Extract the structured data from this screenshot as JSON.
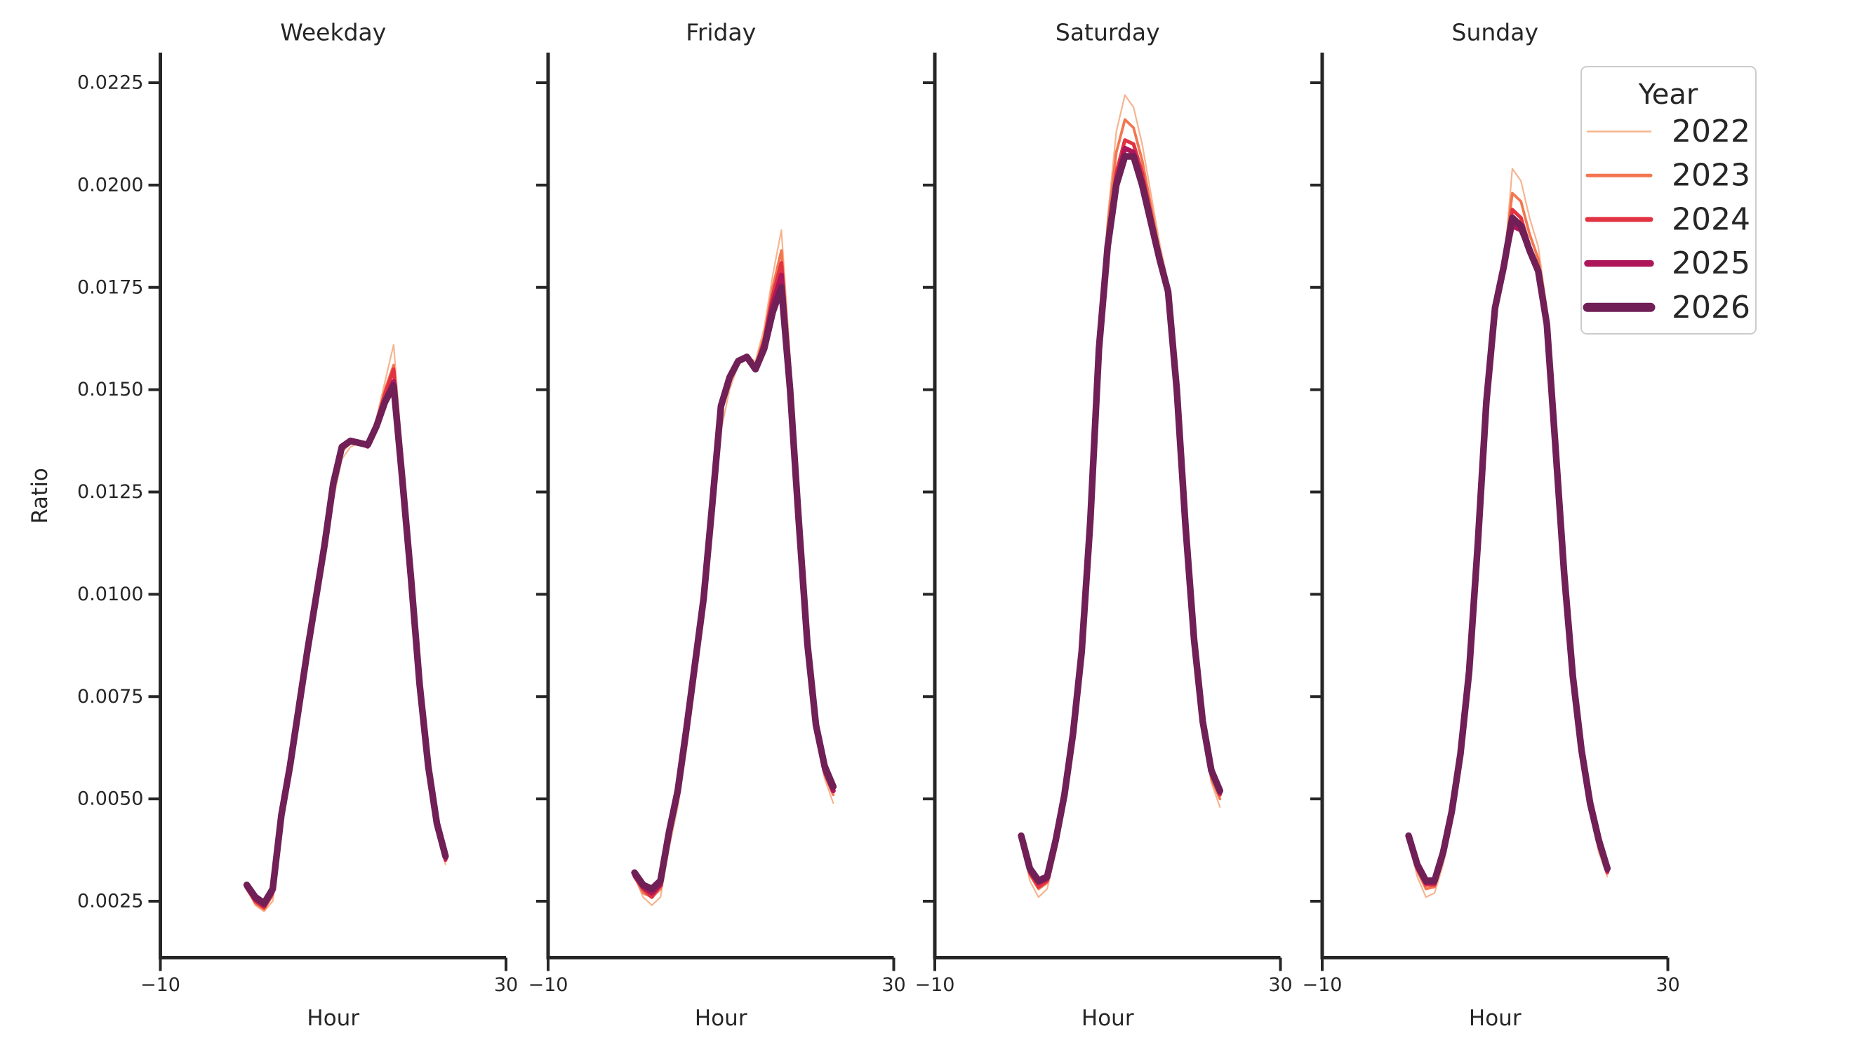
{
  "figure": {
    "background": "#ffffff",
    "text_color": "#262626",
    "spine_color": "#262626",
    "legend_border_color": "#cccccc"
  },
  "chart_data": {
    "type": "line",
    "small_multiples": true,
    "xlabel": "Hour",
    "ylabel": "Ratio",
    "xlim": [
      -10,
      30
    ],
    "ylim": [
      0.0011,
      0.0232
    ],
    "grid": false,
    "xticks": [
      -10,
      30
    ],
    "xtick_labels": [
      "−10",
      "30"
    ],
    "ytick_values": [
      0.0225,
      0.02,
      0.0175,
      0.015,
      0.0125,
      0.01,
      0.0075,
      0.005,
      0.0025
    ],
    "ytick_labels": [
      "0.0225",
      "0.0200",
      "0.0175",
      "0.0150",
      "0.0125",
      "0.0100",
      "0.0075",
      "0.0050",
      "0.0025"
    ],
    "x": [
      0,
      1,
      2,
      3,
      4,
      5,
      6,
      7,
      8,
      9,
      10,
      11,
      12,
      13,
      14,
      15,
      16,
      17,
      18,
      19,
      20,
      21,
      22,
      23
    ],
    "legend": {
      "title": "Year",
      "position": "upper-right",
      "entries": [
        "2022",
        "2023",
        "2024",
        "2025",
        "2026"
      ]
    },
    "series_style": [
      {
        "year": "2022",
        "color": "#f6b48f",
        "line_width": 2.2,
        "legend_swatch_width": 2.5
      },
      {
        "year": "2023",
        "color": "#f37651",
        "line_width": 3.8,
        "legend_swatch_width": 5
      },
      {
        "year": "2024",
        "color": "#e13342",
        "line_width": 5.2,
        "legend_swatch_width": 7
      },
      {
        "year": "2025",
        "color": "#ad1759",
        "line_width": 7.0,
        "legend_swatch_width": 9.5
      },
      {
        "year": "2026",
        "color": "#701f57",
        "line_width": 9.5,
        "legend_swatch_width": 13
      }
    ],
    "panels": [
      {
        "title": "Weekday",
        "series": [
          {
            "name": "2022",
            "values": [
              0.0028,
              0.0024,
              0.00225,
              0.0025,
              0.0044,
              0.0056,
              0.007,
              0.0084,
              0.0096,
              0.0109,
              0.0123,
              0.0133,
              0.0136,
              0.0137,
              0.0136,
              0.0143,
              0.0152,
              0.0161,
              0.0134,
              0.0106,
              0.0079,
              0.0057,
              0.0042,
              0.0034
            ]
          },
          {
            "name": "2023",
            "values": [
              0.0028,
              0.00245,
              0.0023,
              0.00265,
              0.0045,
              0.0057,
              0.0071,
              0.0085,
              0.0098,
              0.0111,
              0.0126,
              0.0135,
              0.0137,
              0.0137,
              0.0136,
              0.0142,
              0.015,
              0.0156,
              0.0131,
              0.0105,
              0.0078,
              0.0057,
              0.0043,
              0.0035
            ]
          },
          {
            "name": "2024",
            "values": [
              0.00285,
              0.0025,
              0.00235,
              0.0027,
              0.0045,
              0.0057,
              0.0071,
              0.0085,
              0.0099,
              0.0112,
              0.0127,
              0.0136,
              0.0137,
              0.0137,
              0.0136,
              0.0142,
              0.0149,
              0.0155,
              0.013,
              0.0104,
              0.0078,
              0.0058,
              0.0043,
              0.0035
            ]
          },
          {
            "name": "2025",
            "values": [
              0.00285,
              0.00255,
              0.0024,
              0.00275,
              0.0046,
              0.0058,
              0.0072,
              0.0086,
              0.0099,
              0.0112,
              0.0127,
              0.0136,
              0.01375,
              0.0137,
              0.01365,
              0.0141,
              0.01475,
              0.0152,
              0.01285,
              0.0104,
              0.0078,
              0.0058,
              0.0044,
              0.00355
            ]
          },
          {
            "name": "2026",
            "values": [
              0.0029,
              0.0026,
              0.00245,
              0.0028,
              0.0046,
              0.0058,
              0.0072,
              0.0086,
              0.0099,
              0.0112,
              0.0127,
              0.0136,
              0.01375,
              0.0137,
              0.01365,
              0.0141,
              0.0147,
              0.0151,
              0.0128,
              0.0104,
              0.0078,
              0.0058,
              0.0044,
              0.0036
            ]
          }
        ]
      },
      {
        "title": "Friday",
        "series": [
          {
            "name": "2022",
            "values": [
              0.0031,
              0.0026,
              0.0024,
              0.0026,
              0.0038,
              0.0048,
              0.0062,
              0.0078,
              0.0094,
              0.0115,
              0.014,
              0.015,
              0.0156,
              0.0158,
              0.0157,
              0.0165,
              0.0178,
              0.0189,
              0.0158,
              0.0123,
              0.009,
              0.0067,
              0.0055,
              0.0049
            ]
          },
          {
            "name": "2023",
            "values": [
              0.0031,
              0.0027,
              0.0026,
              0.0028,
              0.004,
              0.005,
              0.0065,
              0.0081,
              0.0097,
              0.0119,
              0.0144,
              0.0152,
              0.0157,
              0.0158,
              0.0156,
              0.0163,
              0.0175,
              0.0184,
              0.0155,
              0.0121,
              0.0089,
              0.0067,
              0.0056,
              0.0051
            ]
          },
          {
            "name": "2024",
            "values": [
              0.0031,
              0.0028,
              0.0026,
              0.0029,
              0.0041,
              0.0051,
              0.0066,
              0.0082,
              0.0098,
              0.0121,
              0.0145,
              0.0153,
              0.0157,
              0.0158,
              0.0155,
              0.0162,
              0.0173,
              0.0181,
              0.0153,
              0.012,
              0.0088,
              0.0067,
              0.0057,
              0.0052
            ]
          },
          {
            "name": "2025",
            "values": [
              0.00315,
              0.00285,
              0.0027,
              0.0029,
              0.0042,
              0.0052,
              0.0067,
              0.0083,
              0.0099,
              0.0122,
              0.0146,
              0.0153,
              0.0157,
              0.0158,
              0.0155,
              0.0161,
              0.0171,
              0.0178,
              0.0152,
              0.0119,
              0.0088,
              0.0068,
              0.0057,
              0.0052
            ]
          },
          {
            "name": "2026",
            "values": [
              0.0032,
              0.0029,
              0.0028,
              0.003,
              0.0042,
              0.0052,
              0.0067,
              0.0083,
              0.0099,
              0.0122,
              0.0146,
              0.0153,
              0.0157,
              0.0158,
              0.0155,
              0.016,
              0.0169,
              0.0175,
              0.015,
              0.0118,
              0.0088,
              0.0068,
              0.0058,
              0.0053
            ]
          }
        ]
      },
      {
        "title": "Saturday",
        "series": [
          {
            "name": "2022",
            "values": [
              0.004,
              0.003,
              0.0026,
              0.0028,
              0.0037,
              0.0048,
              0.0062,
              0.0081,
              0.0112,
              0.0153,
              0.0192,
              0.0213,
              0.0222,
              0.0219,
              0.021,
              0.0198,
              0.0186,
              0.0176,
              0.0152,
              0.0118,
              0.0088,
              0.0067,
              0.0054,
              0.0048
            ]
          },
          {
            "name": "2023",
            "values": [
              0.004,
              0.00315,
              0.0028,
              0.00295,
              0.0039,
              0.005,
              0.0064,
              0.0084,
              0.0116,
              0.0158,
              0.019,
              0.0208,
              0.0216,
              0.0214,
              0.0206,
              0.0195,
              0.0184,
              0.0175,
              0.0151,
              0.0117,
              0.0088,
              0.0068,
              0.0055,
              0.005
            ]
          },
          {
            "name": "2024",
            "values": [
              0.004,
              0.0032,
              0.00285,
              0.003,
              0.0039,
              0.005,
              0.0065,
              0.0085,
              0.0117,
              0.0159,
              0.0187,
              0.0203,
              0.0211,
              0.021,
              0.0203,
              0.0193,
              0.0183,
              0.0174,
              0.015,
              0.0117,
              0.0089,
              0.0068,
              0.0056,
              0.0051
            ]
          },
          {
            "name": "2025",
            "values": [
              0.00405,
              0.00325,
              0.00295,
              0.00305,
              0.004,
              0.0051,
              0.0066,
              0.0086,
              0.0118,
              0.016,
              0.0186,
              0.0201,
              0.0209,
              0.0208,
              0.0201,
              0.0192,
              0.0182,
              0.0174,
              0.015,
              0.0117,
              0.0089,
              0.0069,
              0.0057,
              0.00515
            ]
          },
          {
            "name": "2026",
            "values": [
              0.0041,
              0.0033,
              0.003,
              0.0031,
              0.004,
              0.0051,
              0.0066,
              0.0086,
              0.0118,
              0.016,
              0.0185,
              0.02,
              0.0207,
              0.0207,
              0.02,
              0.0191,
              0.0182,
              0.0174,
              0.015,
              0.0117,
              0.0089,
              0.0069,
              0.0057,
              0.0052
            ]
          }
        ]
      },
      {
        "title": "Sunday",
        "series": [
          {
            "name": "2022",
            "values": [
              0.004,
              0.0031,
              0.0026,
              0.0027,
              0.0034,
              0.0044,
              0.0057,
              0.0076,
              0.0106,
              0.0141,
              0.0168,
              0.0179,
              0.0204,
              0.0201,
              0.0192,
              0.0185,
              0.017,
              0.0139,
              0.0107,
              0.0081,
              0.0061,
              0.0047,
              0.0037,
              0.0031
            ]
          },
          {
            "name": "2023",
            "values": [
              0.004,
              0.00325,
              0.0028,
              0.00285,
              0.0036,
              0.0046,
              0.0059,
              0.0079,
              0.011,
              0.0145,
              0.017,
              0.0181,
              0.0198,
              0.0196,
              0.0188,
              0.0182,
              0.0168,
              0.0138,
              0.0106,
              0.008,
              0.0061,
              0.0048,
              0.0038,
              0.0032
            ]
          },
          {
            "name": "2024",
            "values": [
              0.004,
              0.0033,
              0.0029,
              0.0029,
              0.0036,
              0.0046,
              0.006,
              0.008,
              0.0111,
              0.0146,
              0.017,
              0.0181,
              0.0194,
              0.0192,
              0.0185,
              0.018,
              0.0167,
              0.0137,
              0.0105,
              0.008,
              0.0062,
              0.0048,
              0.0039,
              0.0032
            ]
          },
          {
            "name": "2025",
            "values": [
              0.00405,
              0.00335,
              0.00295,
              0.00295,
              0.0037,
              0.0047,
              0.0061,
              0.0081,
              0.0112,
              0.0147,
              0.017,
              0.018,
              0.019,
              0.0189,
              0.0184,
              0.0179,
              0.0166,
              0.0136,
              0.0105,
              0.008,
              0.0062,
              0.0049,
              0.004,
              0.00325
            ]
          },
          {
            "name": "2026",
            "values": [
              0.0041,
              0.0034,
              0.003,
              0.003,
              0.0037,
              0.0047,
              0.0061,
              0.0081,
              0.0112,
              0.0147,
              0.017,
              0.018,
              0.0192,
              0.019,
              0.0184,
              0.0179,
              0.0166,
              0.0136,
              0.0105,
              0.008,
              0.0062,
              0.0049,
              0.004,
              0.0033
            ]
          }
        ]
      }
    ]
  }
}
